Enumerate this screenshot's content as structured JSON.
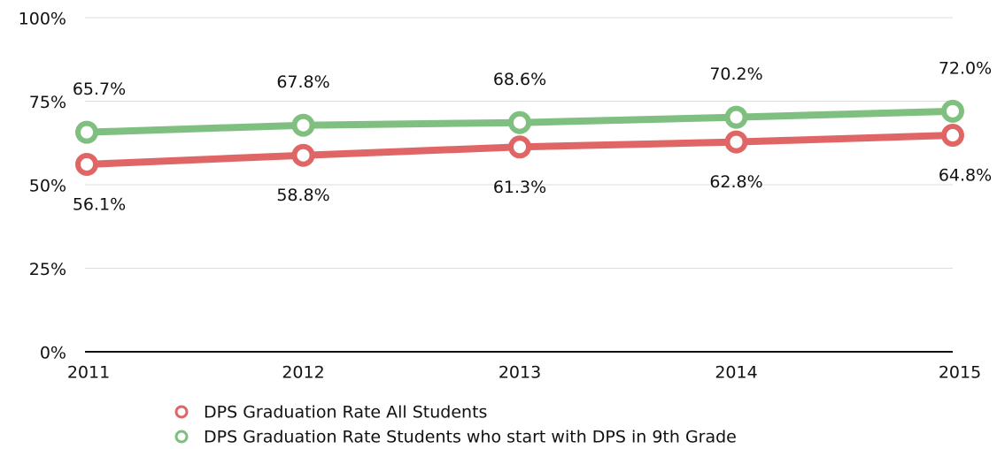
{
  "chart_data": {
    "type": "line",
    "categories": [
      "2011",
      "2012",
      "2013",
      "2014",
      "2015"
    ],
    "series": [
      {
        "name": "DPS Graduation Rate All Students",
        "color": "#e06666",
        "values": [
          56.1,
          58.8,
          61.3,
          62.8,
          64.8
        ],
        "value_labels": [
          "56.1%",
          "58.8%",
          "61.3%",
          "62.8%",
          "64.8%"
        ]
      },
      {
        "name": "DPS Graduation Rate Students who start with DPS in 9th Grade",
        "color": "#7fbf7f",
        "values": [
          65.7,
          67.8,
          68.6,
          70.2,
          72
        ],
        "value_labels": [
          "65.7%",
          "67.8%",
          "68.6%",
          "70.2%",
          "72.0%"
        ]
      }
    ],
    "ylim": [
      0,
      100
    ],
    "yticks": [
      {
        "value": 0,
        "label": "0%"
      },
      {
        "value": 25,
        "label": "25%"
      },
      {
        "value": 50,
        "label": "50%"
      },
      {
        "value": 75,
        "label": "75%"
      },
      {
        "value": 100,
        "label": "100%"
      }
    ],
    "grid": true,
    "legend": "bottom"
  }
}
